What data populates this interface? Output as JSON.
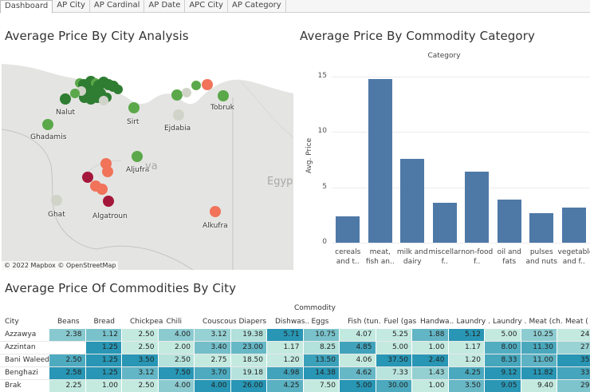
{
  "tabs": [
    {
      "label": "Dashboard",
      "active": true
    },
    {
      "label": "AP City",
      "active": false
    },
    {
      "label": "AP Cardinal",
      "active": false
    },
    {
      "label": "AP Date",
      "active": false
    },
    {
      "label": "APC City",
      "active": false
    },
    {
      "label": "AP Category",
      "active": false
    }
  ],
  "map": {
    "title": "Average Price By City Analysis",
    "places": {
      "nalut": "Nalut",
      "ghadamis": "Ghadamis",
      "sirt": "Sirt",
      "ejdabia": "Ejdabia",
      "tobruk": "Tobruk",
      "aljufra": "Aljufra",
      "ghat": "Ghat",
      "algatroun": "Algatroun",
      "alkufra": "Alkufra",
      "egypt": "Egypt",
      "libya_fragment": "ya"
    },
    "attribution": "© 2022 Mapbox  © OpenStreetMap",
    "colors": {
      "dark_green": "#2e7d32",
      "green": "#5ba84a",
      "light": "#d0d4c8",
      "salmon": "#f0735a",
      "crimson": "#a5173a",
      "land": "#e4e4e2",
      "sea": "#ffffff"
    }
  },
  "bar_chart": {
    "title": "Average Price By Commodity Category",
    "header": "Category",
    "ylabel": "Avg. Price",
    "color": "#4e79a7"
  },
  "chart_data": {
    "type": "bar",
    "title": "Average Price By Commodity Category",
    "xlabel": "Category",
    "ylabel": "Avg. Price",
    "categories": [
      "cereals and t..",
      "meat, fish an..",
      "milk and dairy",
      "miscellan f..",
      "non-food f..",
      "oil and fats",
      "pulses and nuts",
      "vegetable and f.."
    ],
    "values": [
      2.4,
      14.8,
      7.6,
      3.6,
      6.4,
      3.9,
      2.7,
      3.2
    ],
    "ylim": [
      0,
      16
    ],
    "yticks": [
      0,
      5,
      10,
      15
    ],
    "grid": true
  },
  "table": {
    "title": "Average Price Of Commodities By City",
    "super_header": "Commodity",
    "row_header": "City",
    "columns": [
      "Beans",
      "Bread",
      "Chickpeas",
      "Chili",
      "Couscous",
      "Diapers",
      "Dishwas..",
      "Eggs",
      "Fish (tun..",
      "Fuel (gas)",
      "Handwa..",
      "Laundry ..",
      "Laundry ..",
      "Meat (ch..",
      "Meat ("
    ],
    "rows": [
      {
        "city": "Azzawya",
        "values": [
          "2.38",
          "1.12",
          "2.50",
          "4.00",
          "3.12",
          "19.38",
          "5.71",
          "10.75",
          "4.07",
          "5.25",
          "1.88",
          "5.12",
          "5.00",
          "10.25",
          "24"
        ]
      },
      {
        "city": "Azzintan",
        "values": [
          "",
          "1.25",
          "2.50",
          "2.00",
          "3.40",
          "23.00",
          "1.17",
          "8.25",
          "4.85",
          "5.00",
          "1.00",
          "1.17",
          "8.00",
          "11.30",
          "27"
        ]
      },
      {
        "city": "Bani Waleed",
        "values": [
          "2.50",
          "1.25",
          "3.50",
          "2.50",
          "2.75",
          "18.50",
          "1.20",
          "13.50",
          "4.06",
          "37.50",
          "2.40",
          "1.20",
          "8.33",
          "11.00",
          "35"
        ]
      },
      {
        "city": "Benghazi",
        "values": [
          "2.58",
          "1.25",
          "3.12",
          "7.50",
          "3.70",
          "19.18",
          "4.98",
          "14.38",
          "4.62",
          "7.33",
          "1.43",
          "4.25",
          "9.12",
          "11.82",
          "33"
        ]
      },
      {
        "city": "Brak",
        "values": [
          "2.25",
          "1.00",
          "2.50",
          "4.00",
          "4.00",
          "26.00",
          "4.25",
          "7.50",
          "5.00",
          "30.00",
          "1.00",
          "3.50",
          "9.05",
          "9.40",
          "29"
        ]
      }
    ]
  }
}
